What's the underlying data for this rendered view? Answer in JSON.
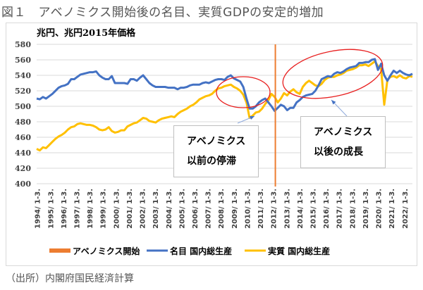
{
  "figure_title": "図１　アベノミクス開始後の名目、実質GDPの安定的増加",
  "source": "（出所）内閣府国民経済計算",
  "chart_data": {
    "type": "line",
    "title": "図１　アベノミクス開始後の名目、実質GDPの安定的増加",
    "ylabel": "兆円、兆円2015年価格",
    "xlabel": "",
    "ylim": [
      400,
      580
    ],
    "yticks": [
      400,
      420,
      440,
      460,
      480,
      500,
      520,
      540,
      560,
      580
    ],
    "grid": true,
    "legend_position": "bottom",
    "x_start": "1994Q1",
    "x_end": "2022Q1",
    "xtick_labels": [
      "1994/ 1-3.",
      "1995/ 1-3.",
      "1996/ 1-3.",
      "1997/ 1-3.",
      "1998/ 1-3.",
      "1999/ 1-3.",
      "2000/ 1-3.",
      "2001/ 1-3.",
      "2002/ 1-3.",
      "2003/ 1-3.",
      "2004/ 1-3.",
      "2005/ 1-3.",
      "2006/ 1-3.",
      "2007/ 1-3.",
      "2008/ 1-3.",
      "2009/ 1-3.",
      "2010/ 1-3.",
      "2011/ 1-3.",
      "2012/ 1-3.",
      "2013/ 1-3.",
      "2014/ 1-3.",
      "2015/ 1-3.",
      "2016/ 1-3.",
      "2017/ 1-3.",
      "2018/ 1-3.",
      "2019/ 1-3.",
      "2020/ 1-3.",
      "2021/ 1-3.",
      "2022/ 1-3."
    ],
    "vline": {
      "name": "アベノミクス開始",
      "x_index": 76,
      "color": "#ED7D31"
    },
    "series": [
      {
        "name": "名目 国内総生産",
        "color": "#4472C4",
        "values": [
          510,
          509,
          512,
          510,
          513,
          516,
          520,
          524,
          526,
          527,
          529,
          535,
          535,
          538,
          541,
          542,
          543,
          544,
          544,
          545,
          540,
          537,
          535,
          535,
          539,
          530,
          530,
          530,
          530,
          529,
          535,
          535,
          533,
          537,
          540,
          535,
          530,
          527,
          525,
          525,
          525,
          525,
          524,
          524,
          524,
          522,
          524,
          524,
          525,
          527,
          528,
          528,
          528,
          530,
          531,
          530,
          532,
          534,
          535,
          535,
          534,
          538,
          540,
          536,
          534,
          532,
          525,
          510,
          497,
          497,
          500,
          505,
          508,
          510,
          505,
          500,
          494,
          498,
          502,
          500,
          495,
          498,
          498,
          505,
          508,
          512,
          514,
          515,
          516,
          520,
          527,
          535,
          537,
          539,
          538,
          542,
          544,
          543,
          545,
          548,
          550,
          551,
          552,
          556,
          556,
          557,
          557,
          560,
          561,
          547,
          555,
          540,
          533,
          540,
          546,
          543,
          546,
          543,
          541,
          540,
          542
        ]
      },
      {
        "name": "実質 国内総生産",
        "color": "#FFC000",
        "values": [
          445,
          443,
          447,
          446,
          450,
          454,
          458,
          461,
          463,
          466,
          470,
          473,
          474,
          477,
          478,
          477,
          476,
          476,
          475,
          473,
          470,
          469,
          470,
          473,
          468,
          466,
          467,
          469,
          469,
          474,
          476,
          478,
          479,
          482,
          485,
          484,
          481,
          480,
          479,
          482,
          484,
          485,
          486,
          487,
          486,
          490,
          493,
          495,
          497,
          500,
          502,
          505,
          509,
          511,
          513,
          514,
          516,
          520,
          523,
          524,
          526,
          527,
          528,
          525,
          523,
          520,
          515,
          505,
          485,
          488,
          492,
          493,
          497,
          503,
          508,
          516,
          512,
          505,
          510,
          517,
          514,
          519,
          522,
          518,
          516,
          525,
          530,
          533,
          530,
          527,
          526,
          529,
          534,
          537,
          538,
          538,
          540,
          541,
          543,
          546,
          547,
          548,
          550,
          553,
          553,
          554,
          552,
          555,
          558,
          552,
          548,
          502,
          534,
          538,
          539,
          537,
          540,
          537,
          536,
          539,
          538
        ]
      }
    ]
  },
  "legend": {
    "items": [
      {
        "label": "アベノミクス開始",
        "color": "#ED7D31"
      },
      {
        "label": "名目 国内総生産",
        "color": "#4472C4"
      },
      {
        "label": "実質 国内総生産",
        "color": "#FFC000"
      }
    ]
  },
  "annotations": [
    {
      "line1": "アベノミクス",
      "line2": "以前の停滞"
    },
    {
      "line1": "アベノミクス",
      "line2": "以後の成長"
    }
  ]
}
